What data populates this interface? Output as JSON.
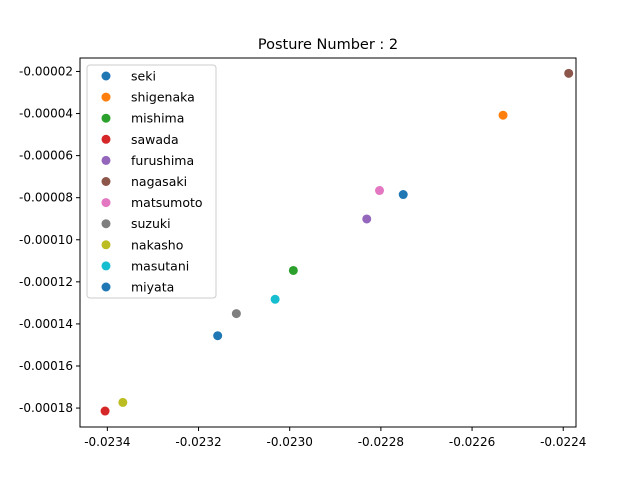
{
  "chart_data": {
    "type": "scatter",
    "title": "Posture Number : 2",
    "xlabel": "",
    "ylabel": "",
    "xlim": [
      -0.02346,
      -0.022372
    ],
    "ylim": [
      -0.000189,
      -1.36e-05
    ],
    "x_ticks": [
      "-0.0234",
      "-0.0232",
      "-0.0230",
      "-0.0228",
      "-0.0226",
      "-0.0224"
    ],
    "x_tick_values": [
      -0.0234,
      -0.0232,
      -0.023,
      -0.0228,
      -0.0226,
      -0.0224
    ],
    "y_ticks": [
      "-0.00018",
      "-0.00016",
      "-0.00014",
      "-0.00012",
      "-0.00010",
      "-0.00008",
      "-0.00006",
      "-0.00004",
      "-0.00002"
    ],
    "y_tick_values": [
      -0.00018,
      -0.00016,
      -0.00014,
      -0.00012,
      -0.0001,
      -8e-05,
      -6e-05,
      -4e-05,
      -2e-05
    ],
    "grid": false,
    "legend_position": "top-left",
    "series": [
      {
        "name": "seki",
        "color": "#1f77b4",
        "points": [
          [
            -0.022751,
            -7.85e-05
          ]
        ]
      },
      {
        "name": "shigenaka",
        "color": "#ff7f0e",
        "points": [
          [
            -0.022532,
            -4.08e-05
          ]
        ]
      },
      {
        "name": "mishima",
        "color": "#2ca02c",
        "points": [
          [
            -0.022992,
            -0.0001146
          ]
        ]
      },
      {
        "name": "sawada",
        "color": "#d62728",
        "points": [
          [
            -0.023405,
            -0.0001814
          ]
        ]
      },
      {
        "name": "furushima",
        "color": "#9467bd",
        "points": [
          [
            -0.022831,
            -9.01e-05
          ]
        ]
      },
      {
        "name": "nagasaki",
        "color": "#8c564b",
        "points": [
          [
            -0.022388,
            -2.09e-05
          ]
        ]
      },
      {
        "name": "matsumoto",
        "color": "#e377c2",
        "points": [
          [
            -0.022803,
            -7.66e-05
          ]
        ]
      },
      {
        "name": "suzuki",
        "color": "#7f7f7f",
        "points": [
          [
            -0.023117,
            -0.0001351
          ]
        ]
      },
      {
        "name": "nakasho",
        "color": "#bcbd22",
        "points": [
          [
            -0.023366,
            -0.0001773
          ]
        ]
      },
      {
        "name": "masutani",
        "color": "#17becf",
        "points": [
          [
            -0.023032,
            -0.0001283
          ]
        ]
      },
      {
        "name": "miyata",
        "color": "#1f77b4",
        "points": [
          [
            -0.023158,
            -0.0001456
          ]
        ]
      }
    ]
  }
}
